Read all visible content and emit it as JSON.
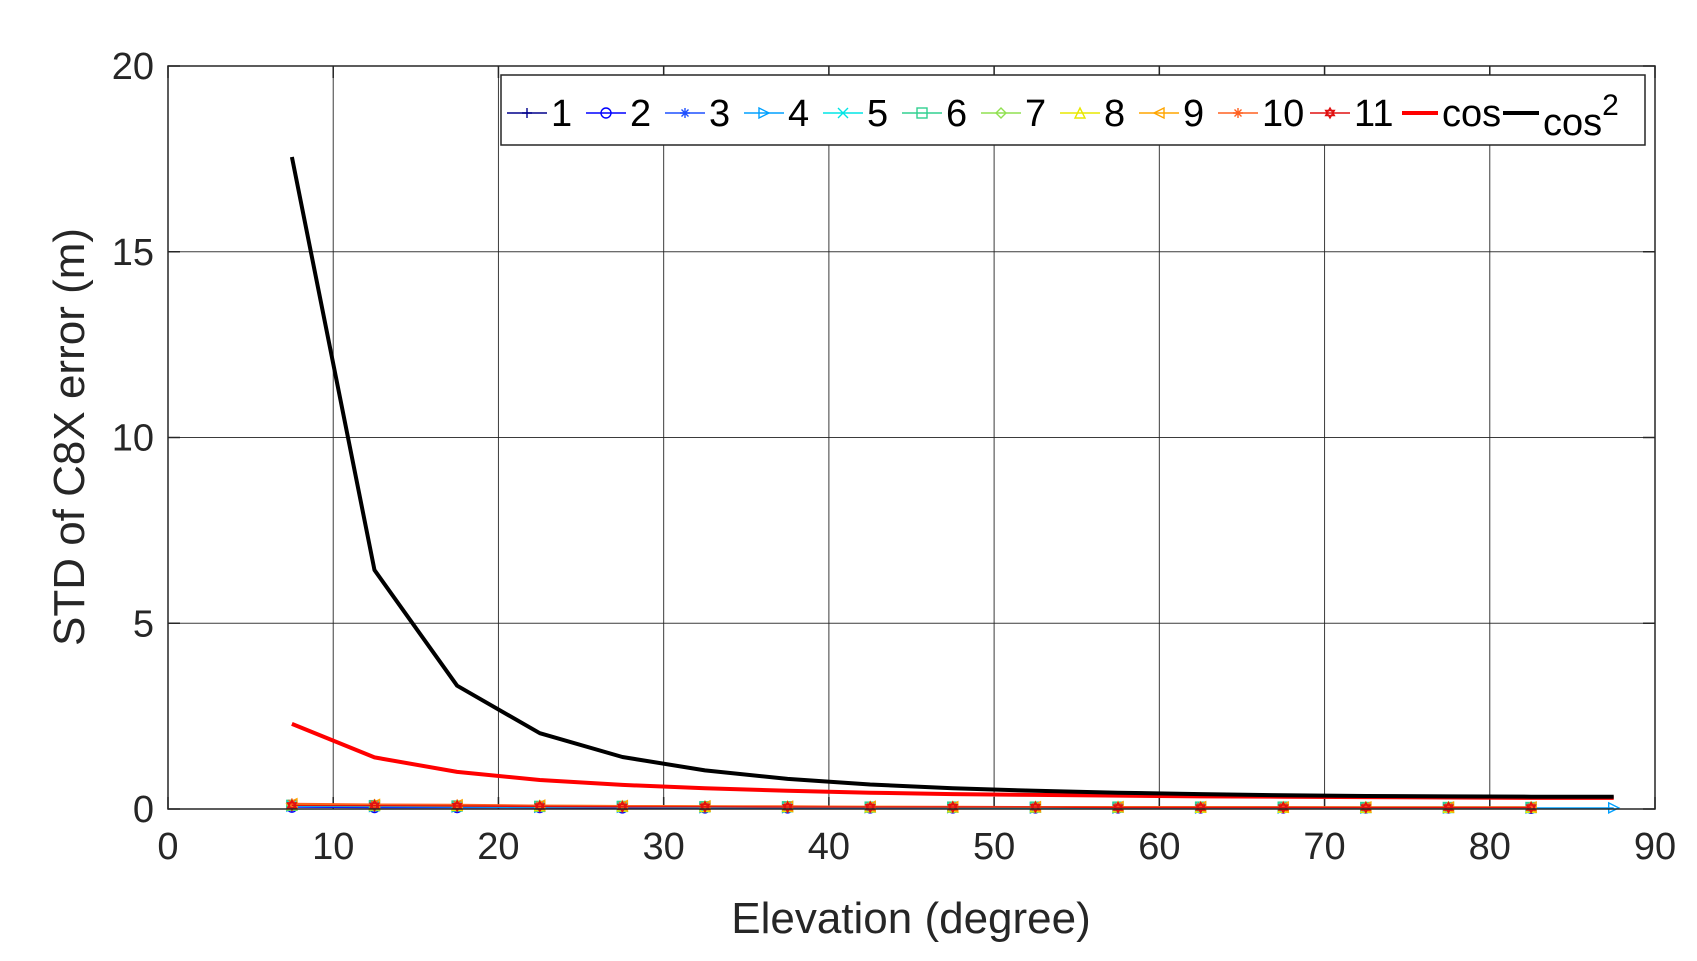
{
  "chart_data": {
    "type": "line",
    "title": "",
    "xlabel": "Elevation (degree)",
    "ylabel": "STD of C8X error (m)",
    "xlim": [
      0,
      90
    ],
    "ylim": [
      0,
      20
    ],
    "xticks": [
      0,
      10,
      20,
      30,
      40,
      50,
      60,
      70,
      80,
      90
    ],
    "yticks": [
      0,
      5,
      10,
      15,
      20
    ],
    "grid": true,
    "legend_position": "top-right",
    "series": [
      {
        "name": "1",
        "color": "#00008B",
        "marker": "plus",
        "x": [
          7.5,
          12.5,
          17.5,
          22.5,
          27.5,
          32.5,
          37.5,
          42.5,
          47.5,
          52.5,
          57.5,
          62.5,
          67.5,
          72.5,
          77.5,
          82.5
        ],
        "y": [
          0.06,
          0.05,
          0.05,
          0.04,
          0.04,
          0.04,
          0.03,
          0.03,
          0.03,
          0.03,
          0.03,
          0.03,
          0.03,
          0.03,
          0.03,
          0.03
        ]
      },
      {
        "name": "2",
        "color": "#0000FF",
        "marker": "circle",
        "x": [
          7.5,
          12.5,
          17.5,
          22.5,
          27.5,
          32.5,
          37.5,
          42.5,
          47.5,
          52.5,
          57.5,
          62.5,
          67.5,
          72.5,
          77.5,
          82.5
        ],
        "y": [
          0.05,
          0.04,
          0.04,
          0.04,
          0.03,
          0.03,
          0.03,
          0.03,
          0.03,
          0.03,
          0.03,
          0.03,
          0.03,
          0.03,
          0.03,
          0.02
        ]
      },
      {
        "name": "3",
        "color": "#1E50FF",
        "marker": "star",
        "x": [
          7.5,
          12.5,
          17.5,
          22.5,
          27.5,
          32.5,
          37.5,
          42.5,
          47.5,
          52.5,
          57.5,
          62.5,
          67.5,
          72.5,
          77.5,
          82.5
        ],
        "y": [
          0.07,
          0.06,
          0.05,
          0.05,
          0.04,
          0.04,
          0.04,
          0.03,
          0.03,
          0.03,
          0.03,
          0.03,
          0.03,
          0.03,
          0.03,
          0.03
        ]
      },
      {
        "name": "4",
        "color": "#00A0FF",
        "marker": "triangle-right",
        "x": [
          7.5,
          12.5,
          17.5,
          22.5,
          27.5,
          32.5,
          37.5,
          42.5,
          47.5,
          52.5,
          57.5,
          62.5,
          67.5,
          72.5,
          77.5,
          82.5,
          87.5
        ],
        "y": [
          0.08,
          0.07,
          0.06,
          0.05,
          0.05,
          0.04,
          0.04,
          0.04,
          0.04,
          0.03,
          0.03,
          0.03,
          0.03,
          0.03,
          0.03,
          0.03,
          0.03
        ]
      },
      {
        "name": "5",
        "color": "#00E5E5",
        "marker": "x",
        "x": [
          7.5,
          12.5,
          17.5,
          22.5,
          27.5,
          32.5,
          37.5,
          42.5,
          47.5,
          52.5,
          57.5,
          62.5,
          67.5,
          72.5,
          77.5,
          82.5
        ],
        "y": [
          0.09,
          0.08,
          0.07,
          0.06,
          0.06,
          0.05,
          0.05,
          0.05,
          0.04,
          0.04,
          0.04,
          0.04,
          0.04,
          0.04,
          0.04,
          0.04
        ]
      },
      {
        "name": "6",
        "color": "#30D090",
        "marker": "square",
        "x": [
          7.5,
          12.5,
          17.5,
          22.5,
          27.5,
          32.5,
          37.5,
          42.5,
          47.5,
          52.5,
          57.5,
          62.5,
          67.5,
          72.5,
          77.5,
          82.5
        ],
        "y": [
          0.1,
          0.09,
          0.08,
          0.07,
          0.07,
          0.06,
          0.06,
          0.05,
          0.05,
          0.05,
          0.05,
          0.05,
          0.05,
          0.04,
          0.04,
          0.04
        ]
      },
      {
        "name": "7",
        "color": "#90E050",
        "marker": "diamond",
        "x": [
          7.5,
          12.5,
          17.5,
          22.5,
          27.5,
          32.5,
          37.5,
          42.5,
          47.5,
          52.5,
          57.5,
          62.5,
          67.5,
          72.5,
          77.5,
          82.5
        ],
        "y": [
          0.11,
          0.1,
          0.09,
          0.08,
          0.07,
          0.07,
          0.06,
          0.06,
          0.06,
          0.05,
          0.05,
          0.05,
          0.05,
          0.05,
          0.05,
          0.05
        ]
      },
      {
        "name": "8",
        "color": "#E8E800",
        "marker": "triangle-up",
        "x": [
          7.5,
          12.5,
          17.5,
          22.5,
          27.5,
          32.5,
          37.5,
          42.5,
          47.5,
          52.5,
          57.5,
          62.5,
          67.5,
          72.5,
          77.5,
          82.5
        ],
        "y": [
          0.12,
          0.11,
          0.1,
          0.09,
          0.08,
          0.07,
          0.07,
          0.06,
          0.06,
          0.06,
          0.06,
          0.05,
          0.05,
          0.05,
          0.05,
          0.05
        ]
      },
      {
        "name": "9",
        "color": "#FFA500",
        "marker": "triangle-left",
        "x": [
          7.5,
          12.5,
          17.5,
          22.5,
          27.5,
          32.5,
          37.5,
          42.5,
          47.5,
          52.5,
          57.5,
          62.5,
          67.5,
          72.5,
          77.5,
          82.5
        ],
        "y": [
          0.14,
          0.12,
          0.11,
          0.1,
          0.09,
          0.08,
          0.07,
          0.07,
          0.06,
          0.06,
          0.06,
          0.06,
          0.05,
          0.05,
          0.05,
          0.05
        ]
      },
      {
        "name": "10",
        "color": "#FF6020",
        "marker": "star",
        "x": [
          7.5,
          12.5,
          17.5,
          22.5,
          27.5,
          32.5,
          37.5,
          42.5,
          47.5,
          52.5,
          57.5,
          62.5,
          67.5,
          72.5,
          77.5,
          82.5
        ],
        "y": [
          0.15,
          0.13,
          0.12,
          0.1,
          0.09,
          0.08,
          0.08,
          0.07,
          0.07,
          0.06,
          0.06,
          0.06,
          0.06,
          0.05,
          0.05,
          0.05
        ]
      },
      {
        "name": "11",
        "color": "#E01010",
        "marker": "hexagram",
        "x": [
          7.5,
          12.5,
          17.5,
          22.5,
          27.5,
          32.5,
          37.5,
          42.5,
          47.5,
          52.5,
          57.5,
          62.5,
          67.5,
          72.5,
          77.5,
          82.5
        ],
        "y": [
          0.1,
          0.09,
          0.08,
          0.07,
          0.06,
          0.06,
          0.05,
          0.05,
          0.05,
          0.05,
          0.04,
          0.04,
          0.04,
          0.04,
          0.04,
          0.04
        ]
      },
      {
        "name": "cos",
        "color": "#FF0000",
        "marker": "none",
        "line_width": 4,
        "x": [
          7.5,
          12.5,
          17.5,
          22.5,
          27.5,
          32.5,
          37.5,
          42.5,
          47.5,
          52.5,
          57.5,
          62.5,
          67.5,
          72.5,
          77.5,
          82.5,
          87.5
        ],
        "y": [
          2.29,
          1.39,
          1.0,
          0.78,
          0.65,
          0.56,
          0.49,
          0.44,
          0.4,
          0.38,
          0.36,
          0.34,
          0.33,
          0.32,
          0.31,
          0.3,
          0.3
        ]
      },
      {
        "name": "cos",
        "name_superscript": "2",
        "color": "#000000",
        "marker": "none",
        "line_width": 4,
        "x": [
          7.5,
          12.5,
          17.5,
          22.5,
          27.5,
          32.5,
          37.5,
          42.5,
          47.5,
          52.5,
          57.5,
          62.5,
          67.5,
          72.5,
          77.5,
          82.5,
          87.5
        ],
        "y": [
          17.55,
          6.43,
          3.32,
          2.04,
          1.4,
          1.04,
          0.81,
          0.66,
          0.56,
          0.49,
          0.44,
          0.4,
          0.37,
          0.35,
          0.34,
          0.33,
          0.33
        ]
      }
    ]
  }
}
